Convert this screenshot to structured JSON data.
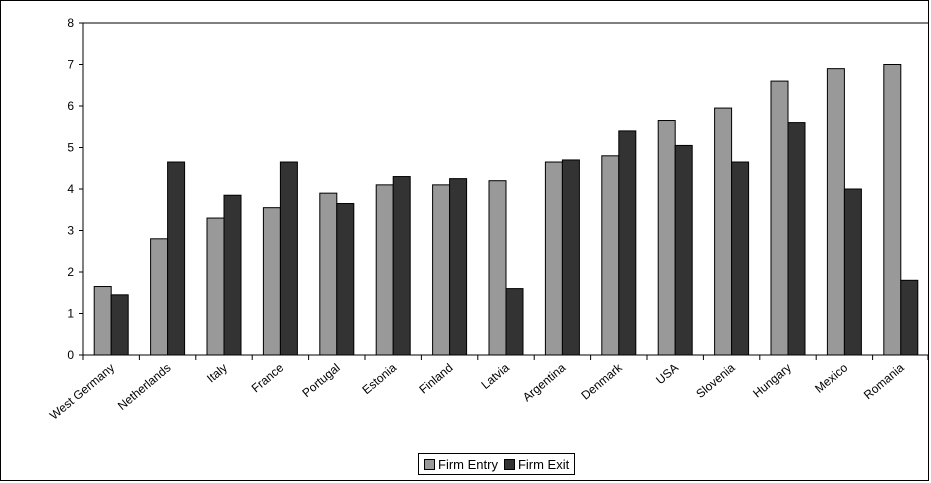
{
  "chart_data": {
    "type": "bar",
    "title": "",
    "xlabel": "",
    "ylabel": "",
    "ylim": [
      0,
      8
    ],
    "yticks": [
      "0",
      "1",
      "2",
      "3",
      "4",
      "5",
      "6",
      "7",
      "8"
    ],
    "categories": [
      "West Germany",
      "Netherlands",
      "Italy",
      "France",
      "Portugal",
      "Estonia",
      "Finland",
      "Latvia",
      "Argentina",
      "Denmark",
      "USA",
      "Slovenia",
      "Hungary",
      "Mexico",
      "Romania"
    ],
    "series": [
      {
        "name": "Firm Entry",
        "color": "#999999",
        "values": [
          1.65,
          2.8,
          3.3,
          3.55,
          3.9,
          4.1,
          4.1,
          4.2,
          4.65,
          4.8,
          5.65,
          5.95,
          6.6,
          6.9,
          7.0
        ]
      },
      {
        "name": "Firm Exit",
        "color": "#333333",
        "values": [
          1.45,
          4.65,
          3.85,
          4.65,
          3.65,
          4.3,
          4.25,
          1.6,
          4.7,
          5.4,
          5.05,
          4.65,
          5.6,
          4.0,
          1.8
        ]
      }
    ],
    "grid": false,
    "legend": "bottom"
  }
}
